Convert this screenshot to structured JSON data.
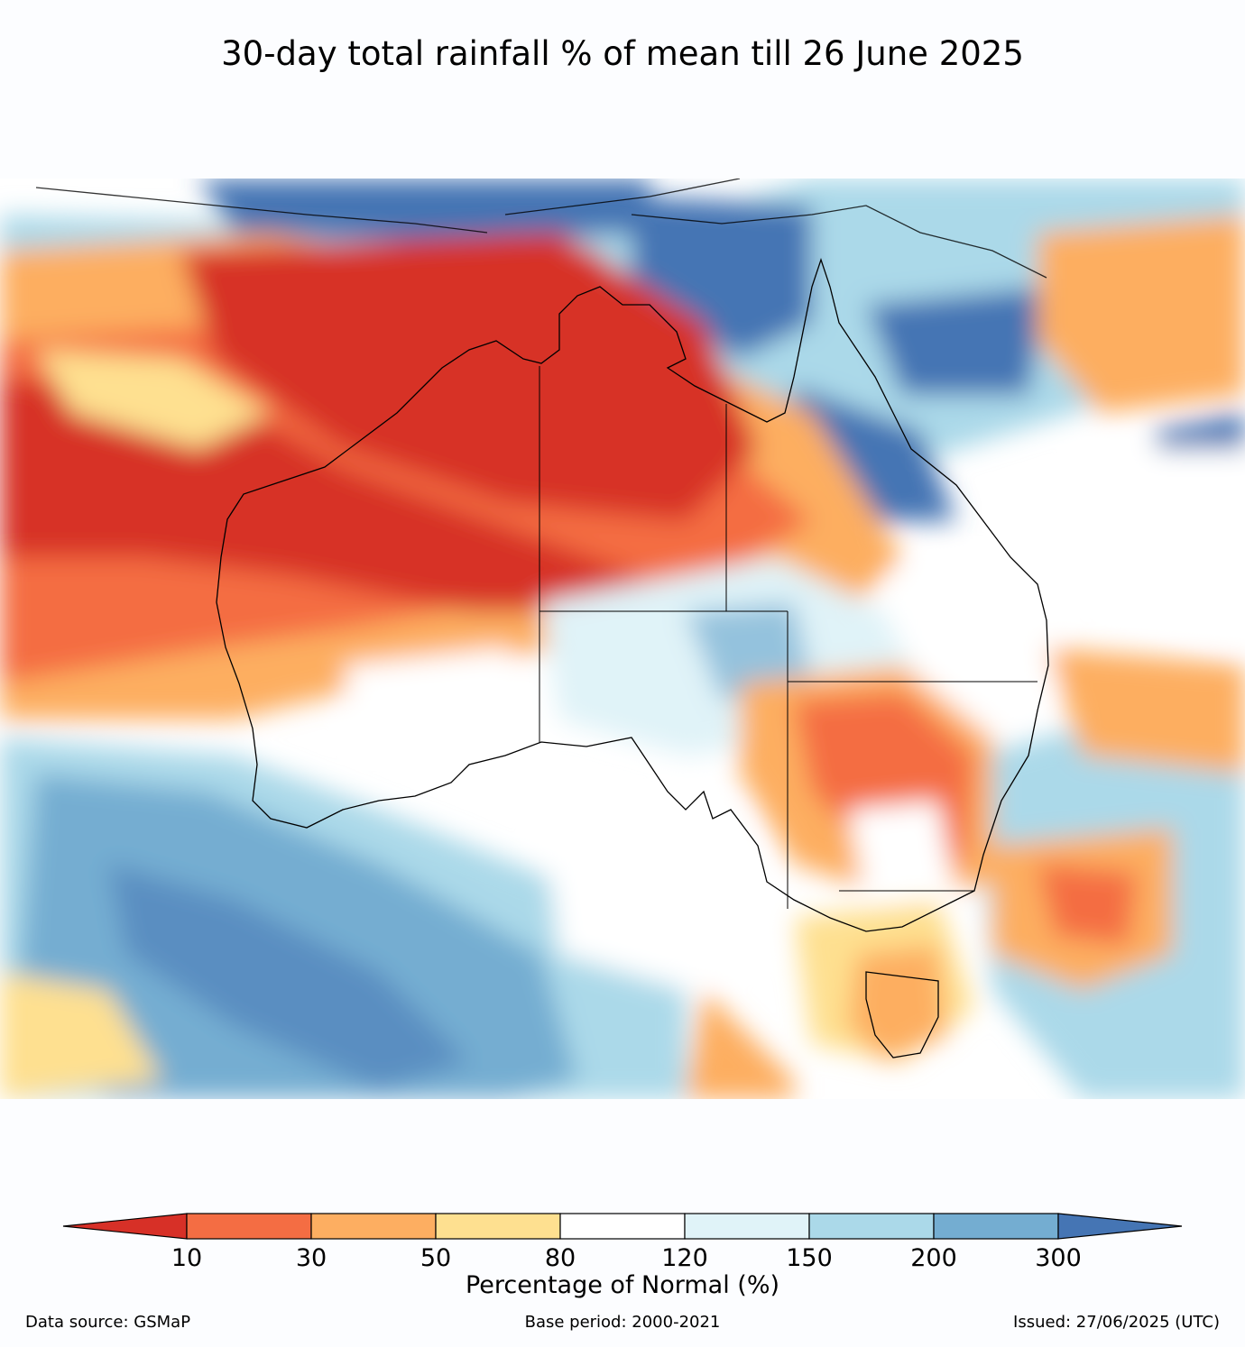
{
  "title": "30-day total rainfall % of mean till 26 June 2025",
  "colorbar": {
    "label": "Percentage of Normal (%)",
    "ticks": [
      "10",
      "30",
      "50",
      "80",
      "120",
      "150",
      "200",
      "300"
    ],
    "bins": [
      {
        "range": "<10",
        "color": "#d73027"
      },
      {
        "range": "10-30",
        "color": "#f46d43"
      },
      {
        "range": "30-50",
        "color": "#fdae61"
      },
      {
        "range": "50-80",
        "color": "#fee090"
      },
      {
        "range": "80-120",
        "color": "#ffffff"
      },
      {
        "range": "120-150",
        "color": "#e0f3f8"
      },
      {
        "range": "150-200",
        "color": "#abd9e9"
      },
      {
        "range": "200-300",
        "color": "#74add1"
      },
      {
        "range": ">300",
        "color": "#4575b4"
      }
    ]
  },
  "footer": {
    "source": "Data source: GSMaP",
    "base_period": "Base period: 2000-2021",
    "issued": "Issued: 27/06/2025 (UTC)"
  }
}
